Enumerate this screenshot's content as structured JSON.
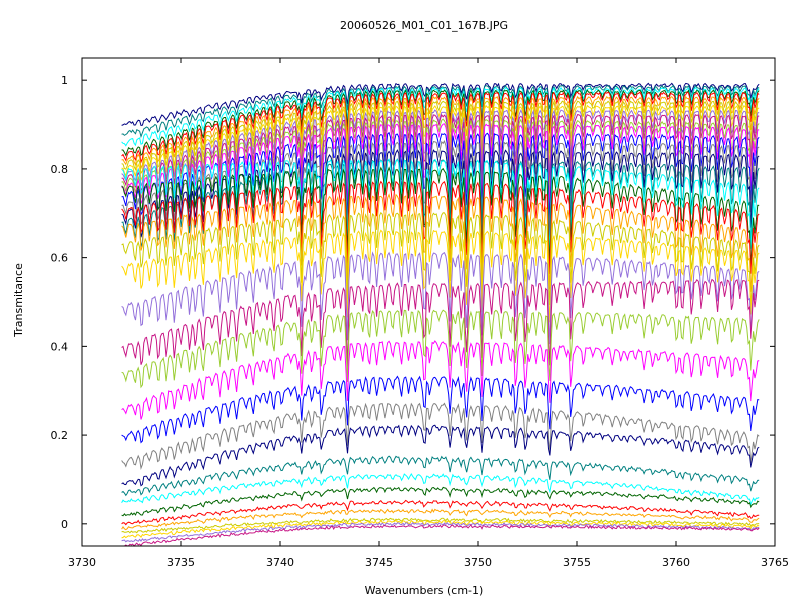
{
  "chart_data": {
    "type": "line",
    "title": "20060526_M01_C01_167B.JPG",
    "xlabel": "Wavenumbers (cm-1)",
    "ylabel": "Transmitance",
    "xlim": [
      3730,
      3765
    ],
    "ylim": [
      -0.05,
      1.05
    ],
    "x_ticks": [
      3730,
      3735,
      3740,
      3745,
      3750,
      3755,
      3760,
      3765
    ],
    "y_ticks": [
      0,
      0.2,
      0.4,
      0.6,
      0.8,
      1
    ],
    "x_tick_labels": [
      "3730",
      "3735",
      "3740",
      "3745",
      "3750",
      "3755",
      "3760",
      "3765"
    ],
    "y_tick_labels": [
      "0",
      "0.2",
      "0.4",
      "0.6",
      "0.8",
      "1"
    ],
    "grid": false,
    "legend": "none",
    "x_range": [
      3732,
      3764.2
    ],
    "series_colors": [
      "#000080",
      "#008080",
      "#00ffff",
      "#006400",
      "#ff0000",
      "#ffa500",
      "#cccc00",
      "#ffd700",
      "#9370db",
      "#c71585",
      "#9acd32",
      "#ff00ff",
      "#0000ff",
      "#808080"
    ],
    "series_levels": [
      {
        "start": 0.9,
        "mid": 0.99,
        "end": 0.99,
        "depth": 0.03
      },
      {
        "start": 0.88,
        "mid": 0.985,
        "end": 0.985,
        "depth": 0.04
      },
      {
        "start": 0.86,
        "mid": 0.98,
        "end": 0.98,
        "depth": 0.05
      },
      {
        "start": 0.84,
        "mid": 0.975,
        "end": 0.975,
        "depth": 0.06
      },
      {
        "start": 0.83,
        "mid": 0.97,
        "end": 0.97,
        "depth": 0.07
      },
      {
        "start": 0.82,
        "mid": 0.96,
        "end": 0.96,
        "depth": 0.08
      },
      {
        "start": 0.81,
        "mid": 0.95,
        "end": 0.95,
        "depth": 0.09
      },
      {
        "start": 0.8,
        "mid": 0.94,
        "end": 0.94,
        "depth": 0.1
      },
      {
        "start": 0.79,
        "mid": 0.93,
        "end": 0.93,
        "depth": 0.11
      },
      {
        "start": 0.78,
        "mid": 0.92,
        "end": 0.92,
        "depth": 0.12
      },
      {
        "start": 0.77,
        "mid": 0.91,
        "end": 0.9,
        "depth": 0.13
      },
      {
        "start": 0.76,
        "mid": 0.9,
        "end": 0.89,
        "depth": 0.14
      },
      {
        "start": 0.74,
        "mid": 0.88,
        "end": 0.87,
        "depth": 0.15
      },
      {
        "start": 0.72,
        "mid": 0.86,
        "end": 0.85,
        "depth": 0.16
      },
      {
        "start": 0.7,
        "mid": 0.84,
        "end": 0.83,
        "depth": 0.17
      },
      {
        "start": 0.68,
        "mid": 0.82,
        "end": 0.8,
        "depth": 0.18
      },
      {
        "start": 0.8,
        "mid": 0.82,
        "end": 0.76,
        "depth": 0.15
      },
      {
        "start": 0.76,
        "mid": 0.8,
        "end": 0.72,
        "depth": 0.15
      },
      {
        "start": 0.71,
        "mid": 0.77,
        "end": 0.7,
        "depth": 0.15
      },
      {
        "start": 0.67,
        "mid": 0.74,
        "end": 0.66,
        "depth": 0.15
      },
      {
        "start": 0.63,
        "mid": 0.7,
        "end": 0.63,
        "depth": 0.15
      },
      {
        "start": 0.58,
        "mid": 0.66,
        "end": 0.61,
        "depth": 0.15
      },
      {
        "start": 0.49,
        "mid": 0.61,
        "end": 0.57,
        "depth": 0.15
      },
      {
        "start": 0.4,
        "mid": 0.54,
        "end": 0.55,
        "depth": 0.14
      },
      {
        "start": 0.34,
        "mid": 0.48,
        "end": 0.46,
        "depth": 0.12
      },
      {
        "start": 0.26,
        "mid": 0.41,
        "end": 0.37,
        "depth": 0.1
      },
      {
        "start": 0.2,
        "mid": 0.33,
        "end": 0.28,
        "depth": 0.08
      },
      {
        "start": 0.14,
        "mid": 0.27,
        "end": 0.2,
        "depth": 0.07
      },
      {
        "start": 0.09,
        "mid": 0.22,
        "end": 0.17,
        "depth": 0.05
      },
      {
        "start": 0.07,
        "mid": 0.15,
        "end": 0.1,
        "depth": 0.04
      },
      {
        "start": 0.05,
        "mid": 0.11,
        "end": 0.06,
        "depth": 0.03
      },
      {
        "start": 0.02,
        "mid": 0.08,
        "end": 0.05,
        "depth": 0.025
      },
      {
        "start": 0.0,
        "mid": 0.05,
        "end": 0.02,
        "depth": 0.02
      },
      {
        "start": -0.01,
        "mid": 0.03,
        "end": 0.01,
        "depth": 0.015
      },
      {
        "start": -0.02,
        "mid": 0.01,
        "end": 0.0,
        "depth": 0.01
      },
      {
        "start": -0.03,
        "mid": 0.005,
        "end": -0.005,
        "depth": 0.01
      },
      {
        "start": -0.04,
        "mid": 0.0,
        "end": -0.01,
        "depth": 0.008
      },
      {
        "start": -0.05,
        "mid": -0.005,
        "end": -0.012,
        "depth": 0.006
      }
    ]
  }
}
